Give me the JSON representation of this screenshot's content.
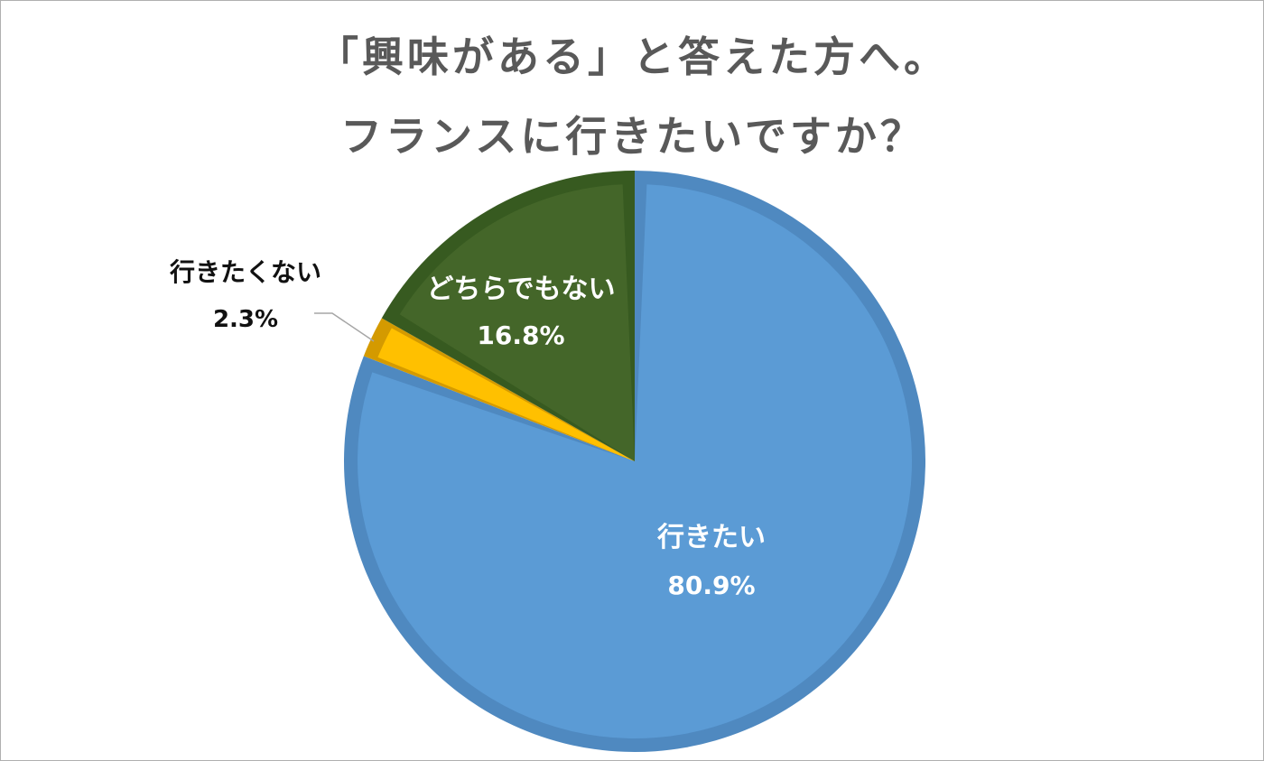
{
  "chart_data": {
    "type": "pie",
    "title": "「興味がある」と答えた方へ。",
    "subtitle": "フランスに行きたいですか？",
    "start_angle_deg": 0,
    "direction": "clockwise",
    "slices": [
      {
        "name": "行きたい",
        "value": 80.9,
        "value_label": "80.9%",
        "color": "#5b9bd5",
        "edge_color": "#4f89c0",
        "label_color": "#ffffff",
        "label_position": "inside"
      },
      {
        "name": "行きたくない",
        "value": 2.3,
        "value_label": "2.3%",
        "color": "#e8ac00",
        "edge_color": "#d49a00",
        "inner_color": "#ffc000",
        "label_color": "#111111",
        "label_position": "outside-leader"
      },
      {
        "name": "どちらでもない",
        "value": 16.8,
        "value_label": "16.8%",
        "color": "#446629",
        "edge_color": "#375a20",
        "label_color": "#ffffff",
        "label_position": "inside"
      }
    ],
    "leader_line_color": "#a6a6a6"
  }
}
